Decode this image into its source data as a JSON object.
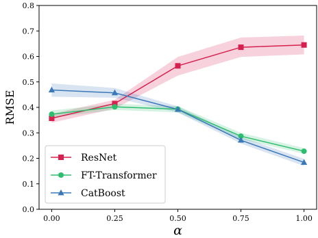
{
  "chart_data": {
    "type": "line",
    "x": [
      0.0,
      0.25,
      0.5,
      0.75,
      1.0
    ],
    "x_tick_labels": [
      "0.00",
      "0.25",
      "0.50",
      "0.75",
      "1.00"
    ],
    "y_tick_labels": [
      "0.0",
      "0.1",
      "0.2",
      "0.3",
      "0.4",
      "0.5",
      "0.6",
      "0.7",
      "0.8"
    ],
    "xlim": [
      -0.05,
      1.05
    ],
    "ylim": [
      0.0,
      0.8
    ],
    "xlabel": "α",
    "ylabel": "RMSE",
    "grid": false,
    "legend_position": "lower-left",
    "series": [
      {
        "name": "ResNet",
        "color": "#d6204f",
        "marker": "square",
        "values": [
          0.357,
          0.415,
          0.563,
          0.636,
          0.645
        ],
        "lower": [
          0.34,
          0.395,
          0.525,
          0.598,
          0.608
        ],
        "upper": [
          0.374,
          0.43,
          0.598,
          0.674,
          0.682
        ]
      },
      {
        "name": "FT-Transformer",
        "color": "#2dbd6e",
        "marker": "circle",
        "values": [
          0.373,
          0.402,
          0.393,
          0.287,
          0.228
        ],
        "lower": [
          0.36,
          0.39,
          0.38,
          0.275,
          0.218
        ],
        "upper": [
          0.388,
          0.414,
          0.405,
          0.3,
          0.24
        ]
      },
      {
        "name": "CatBoost",
        "color": "#3b78b8",
        "marker": "triangle",
        "values": [
          0.468,
          0.457,
          0.392,
          0.271,
          0.184
        ],
        "lower": [
          0.442,
          0.438,
          0.38,
          0.258,
          0.17
        ],
        "upper": [
          0.494,
          0.476,
          0.404,
          0.284,
          0.198
        ]
      }
    ]
  }
}
